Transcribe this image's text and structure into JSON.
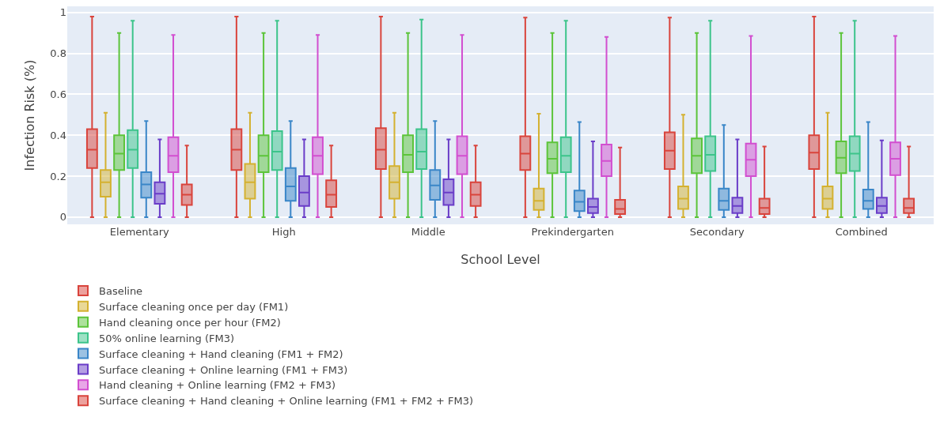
{
  "chart_data": {
    "type": "box",
    "xlabel": "School Level",
    "ylabel": "Infection Risk (%)",
    "categories": [
      "Elementary",
      "High",
      "Middle",
      "Prekindergarten",
      "Secondary",
      "Combined"
    ],
    "ylim": [
      -0.035,
      1.03
    ],
    "yticks": [
      0,
      0.2,
      0.4,
      0.6,
      0.8,
      1
    ],
    "grid": "y",
    "legend": "bottom",
    "series": [
      {
        "name": "Baseline",
        "color": "#d9443c",
        "boxes": [
          {
            "low": 0,
            "q1": 0.24,
            "median": 0.33,
            "q3": 0.43,
            "high": 0.98
          },
          {
            "low": 0,
            "q1": 0.23,
            "median": 0.33,
            "q3": 0.43,
            "high": 0.98
          },
          {
            "low": 0,
            "q1": 0.235,
            "median": 0.33,
            "q3": 0.435,
            "high": 0.98
          },
          {
            "low": 0,
            "q1": 0.23,
            "median": 0.31,
            "q3": 0.395,
            "high": 0.975
          },
          {
            "low": 0,
            "q1": 0.235,
            "median": 0.325,
            "q3": 0.415,
            "high": 0.975
          },
          {
            "low": 0,
            "q1": 0.235,
            "median": 0.315,
            "q3": 0.4,
            "high": 0.98
          }
        ]
      },
      {
        "name": "Surface cleaning once per day (FM1)",
        "color": "#d4b130",
        "boxes": [
          {
            "low": 0,
            "q1": 0.1,
            "median": 0.17,
            "q3": 0.23,
            "high": 0.51
          },
          {
            "low": 0,
            "q1": 0.09,
            "median": 0.17,
            "q3": 0.26,
            "high": 0.51
          },
          {
            "low": 0,
            "q1": 0.09,
            "median": 0.17,
            "q3": 0.25,
            "high": 0.51
          },
          {
            "low": 0,
            "q1": 0.035,
            "median": 0.08,
            "q3": 0.14,
            "high": 0.505
          },
          {
            "low": 0,
            "q1": 0.04,
            "median": 0.09,
            "q3": 0.15,
            "high": 0.5
          },
          {
            "low": 0,
            "q1": 0.04,
            "median": 0.09,
            "q3": 0.15,
            "high": 0.51
          }
        ]
      },
      {
        "name": "Hand cleaning once per hour (FM2)",
        "color": "#5cc43a",
        "boxes": [
          {
            "low": 0,
            "q1": 0.23,
            "median": 0.31,
            "q3": 0.4,
            "high": 0.9
          },
          {
            "low": 0,
            "q1": 0.22,
            "median": 0.3,
            "q3": 0.4,
            "high": 0.9
          },
          {
            "low": 0,
            "q1": 0.22,
            "median": 0.305,
            "q3": 0.4,
            "high": 0.9
          },
          {
            "low": 0,
            "q1": 0.215,
            "median": 0.285,
            "q3": 0.365,
            "high": 0.9
          },
          {
            "low": 0,
            "q1": 0.215,
            "median": 0.3,
            "q3": 0.385,
            "high": 0.9
          },
          {
            "low": 0,
            "q1": 0.215,
            "median": 0.29,
            "q3": 0.37,
            "high": 0.9
          }
        ]
      },
      {
        "name": "50% online learning (FM3)",
        "color": "#3cc48a",
        "boxes": [
          {
            "low": 0,
            "q1": 0.24,
            "median": 0.33,
            "q3": 0.425,
            "high": 0.96
          },
          {
            "low": 0,
            "q1": 0.23,
            "median": 0.32,
            "q3": 0.42,
            "high": 0.96
          },
          {
            "low": 0,
            "q1": 0.235,
            "median": 0.32,
            "q3": 0.43,
            "high": 0.965
          },
          {
            "low": 0,
            "q1": 0.22,
            "median": 0.3,
            "q3": 0.39,
            "high": 0.96
          },
          {
            "low": 0,
            "q1": 0.225,
            "median": 0.305,
            "q3": 0.395,
            "high": 0.96
          },
          {
            "low": 0,
            "q1": 0.225,
            "median": 0.31,
            "q3": 0.395,
            "high": 0.96
          }
        ]
      },
      {
        "name": "Surface cleaning + Hand cleaning (FM1 + FM2)",
        "color": "#3a86c8",
        "boxes": [
          {
            "low": 0,
            "q1": 0.095,
            "median": 0.16,
            "q3": 0.22,
            "high": 0.47
          },
          {
            "low": 0,
            "q1": 0.08,
            "median": 0.15,
            "q3": 0.24,
            "high": 0.47
          },
          {
            "low": 0,
            "q1": 0.085,
            "median": 0.155,
            "q3": 0.23,
            "high": 0.47
          },
          {
            "low": 0,
            "q1": 0.03,
            "median": 0.075,
            "q3": 0.13,
            "high": 0.465
          },
          {
            "low": 0,
            "q1": 0.035,
            "median": 0.08,
            "q3": 0.14,
            "high": 0.45
          },
          {
            "low": 0,
            "q1": 0.04,
            "median": 0.08,
            "q3": 0.135,
            "high": 0.465
          }
        ]
      },
      {
        "name": "Surface cleaning + Online learning (FM1 + FM3)",
        "color": "#6a3dc8",
        "boxes": [
          {
            "low": 0,
            "q1": 0.065,
            "median": 0.115,
            "q3": 0.17,
            "high": 0.38
          },
          {
            "low": 0,
            "q1": 0.055,
            "median": 0.12,
            "q3": 0.2,
            "high": 0.38
          },
          {
            "low": 0,
            "q1": 0.06,
            "median": 0.12,
            "q3": 0.185,
            "high": 0.38
          },
          {
            "low": 0,
            "q1": 0.02,
            "median": 0.05,
            "q3": 0.09,
            "high": 0.37
          },
          {
            "low": 0,
            "q1": 0.02,
            "median": 0.055,
            "q3": 0.095,
            "high": 0.38
          },
          {
            "low": 0,
            "q1": 0.02,
            "median": 0.055,
            "q3": 0.095,
            "high": 0.375
          }
        ]
      },
      {
        "name": "Hand cleaning + Online learning (FM2 + FM3)",
        "color": "#d24fd0",
        "boxes": [
          {
            "low": 0,
            "q1": 0.22,
            "median": 0.3,
            "q3": 0.39,
            "high": 0.89
          },
          {
            "low": 0,
            "q1": 0.21,
            "median": 0.3,
            "q3": 0.39,
            "high": 0.89
          },
          {
            "low": 0,
            "q1": 0.21,
            "median": 0.3,
            "q3": 0.395,
            "high": 0.89
          },
          {
            "low": 0,
            "q1": 0.2,
            "median": 0.275,
            "q3": 0.355,
            "high": 0.88
          },
          {
            "low": 0,
            "q1": 0.2,
            "median": 0.28,
            "q3": 0.36,
            "high": 0.885
          },
          {
            "low": 0,
            "q1": 0.205,
            "median": 0.285,
            "q3": 0.365,
            "high": 0.885
          }
        ]
      },
      {
        "name": "Surface cleaning + Hand cleaning + Online learning (FM1 + FM2 + FM3)",
        "color": "#d9443c",
        "boxes": [
          {
            "low": 0,
            "q1": 0.06,
            "median": 0.11,
            "q3": 0.16,
            "high": 0.35
          },
          {
            "low": 0,
            "q1": 0.05,
            "median": 0.11,
            "q3": 0.18,
            "high": 0.35
          },
          {
            "low": 0,
            "q1": 0.055,
            "median": 0.11,
            "q3": 0.17,
            "high": 0.35
          },
          {
            "low": 0,
            "q1": 0.015,
            "median": 0.04,
            "q3": 0.085,
            "high": 0.34
          },
          {
            "low": 0,
            "q1": 0.015,
            "median": 0.045,
            "q3": 0.09,
            "high": 0.345
          },
          {
            "low": 0,
            "q1": 0.02,
            "median": 0.045,
            "q3": 0.09,
            "high": 0.345
          }
        ]
      }
    ]
  }
}
